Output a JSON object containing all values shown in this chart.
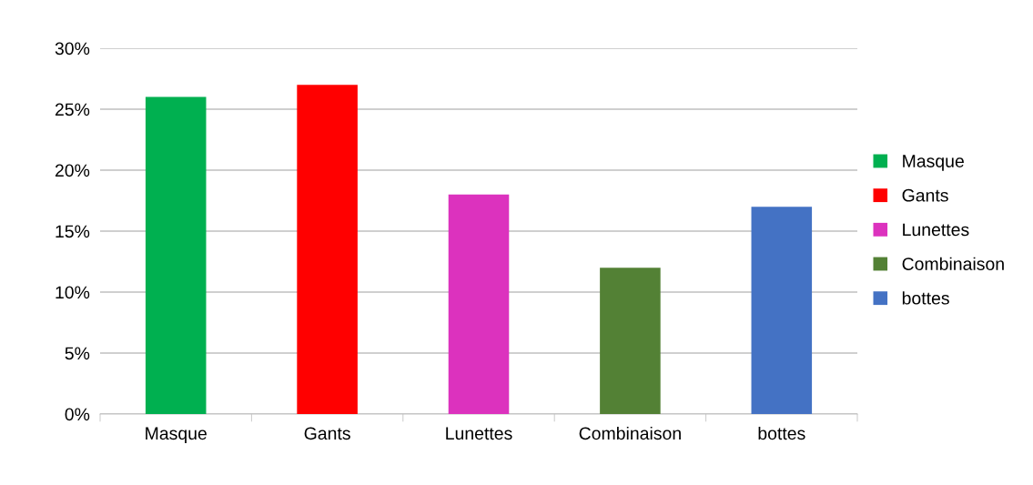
{
  "chart_data": {
    "type": "bar",
    "categories": [
      "Masque",
      "Gants",
      "Lunettes",
      "Combinaison",
      "bottes"
    ],
    "series": [
      {
        "name": "Masque",
        "color": "#00b050",
        "values": [
          26,
          null,
          null,
          null,
          null
        ]
      },
      {
        "name": "Gants",
        "color": "#ff0000",
        "values": [
          null,
          27,
          null,
          null,
          null
        ]
      },
      {
        "name": "Lunettes",
        "color": "#dc32be",
        "values": [
          null,
          null,
          18,
          null,
          null
        ]
      },
      {
        "name": "Combinaison",
        "color": "#538135",
        "values": [
          null,
          null,
          null,
          12,
          null
        ]
      },
      {
        "name": "bottes",
        "color": "#4472c4",
        "values": [
          null,
          null,
          null,
          null,
          17
        ]
      }
    ],
    "ylim": [
      0,
      30
    ],
    "yticks": [
      {
        "value": 0,
        "label": "0%"
      },
      {
        "value": 5,
        "label": "5%"
      },
      {
        "value": 10,
        "label": "10%"
      },
      {
        "value": 15,
        "label": "15%"
      },
      {
        "value": 20,
        "label": "20%"
      },
      {
        "value": 25,
        "label": "25%"
      },
      {
        "value": 30,
        "label": "30%"
      }
    ],
    "grid": "y",
    "legend": "right"
  }
}
